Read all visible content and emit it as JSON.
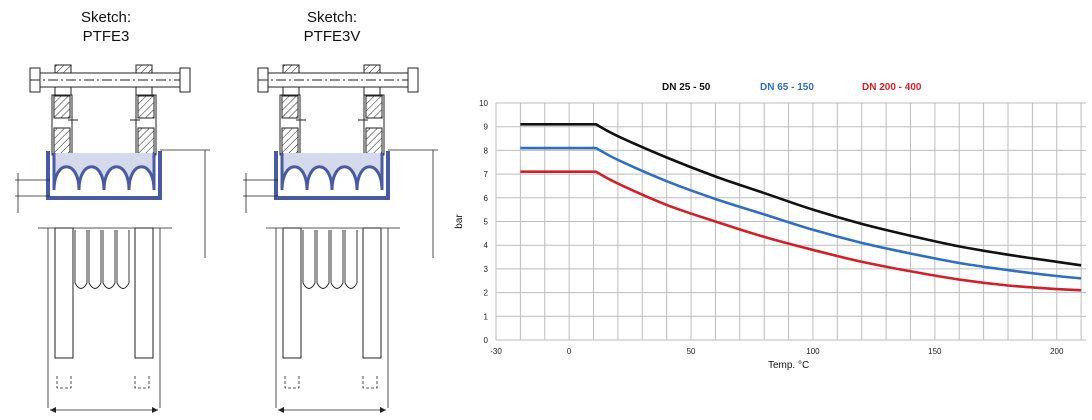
{
  "sketches": [
    {
      "title_line1": "Sketch:",
      "title_line2": "PTFE3"
    },
    {
      "title_line1": "Sketch:",
      "title_line2": "PTFE3V"
    }
  ],
  "colors": {
    "series1": "#111111",
    "series2": "#2f6fc0",
    "series3": "#d0202a",
    "bellows": "#4a5aa0",
    "bellows_fill": "#d5d9ec",
    "grid": "#bdbdbd"
  },
  "chart_data": {
    "type": "line",
    "xlabel": "Temp. °C",
    "ylabel": "bar",
    "xlim": [
      -30,
      212
    ],
    "ylim": [
      0,
      10
    ],
    "xticks": [
      -30,
      0,
      50,
      100,
      150,
      200
    ],
    "yticks": [
      0,
      1,
      2,
      3,
      4,
      5,
      6,
      7,
      8,
      9,
      10
    ],
    "grid": true,
    "legend_position": "top-center",
    "series": [
      {
        "name": "DN 25 - 50",
        "x": [
          -20,
          11,
          20,
          40,
          60,
          80,
          100,
          120,
          140,
          160,
          180,
          200,
          210
        ],
        "y": [
          9.1,
          9.1,
          8.6,
          7.7,
          6.9,
          6.2,
          5.5,
          4.9,
          4.4,
          3.95,
          3.6,
          3.3,
          3.15
        ]
      },
      {
        "name": "DN 65 - 150",
        "x": [
          -20,
          11,
          20,
          40,
          60,
          80,
          100,
          120,
          140,
          160,
          180,
          200,
          210
        ],
        "y": [
          8.1,
          8.1,
          7.6,
          6.7,
          5.95,
          5.3,
          4.65,
          4.1,
          3.65,
          3.25,
          2.95,
          2.7,
          2.6
        ]
      },
      {
        "name": "DN 200 - 400",
        "x": [
          -20,
          11,
          20,
          40,
          60,
          80,
          100,
          120,
          140,
          160,
          180,
          200,
          210
        ],
        "y": [
          7.1,
          7.1,
          6.6,
          5.7,
          5.0,
          4.35,
          3.8,
          3.3,
          2.9,
          2.55,
          2.3,
          2.15,
          2.1
        ]
      }
    ]
  }
}
